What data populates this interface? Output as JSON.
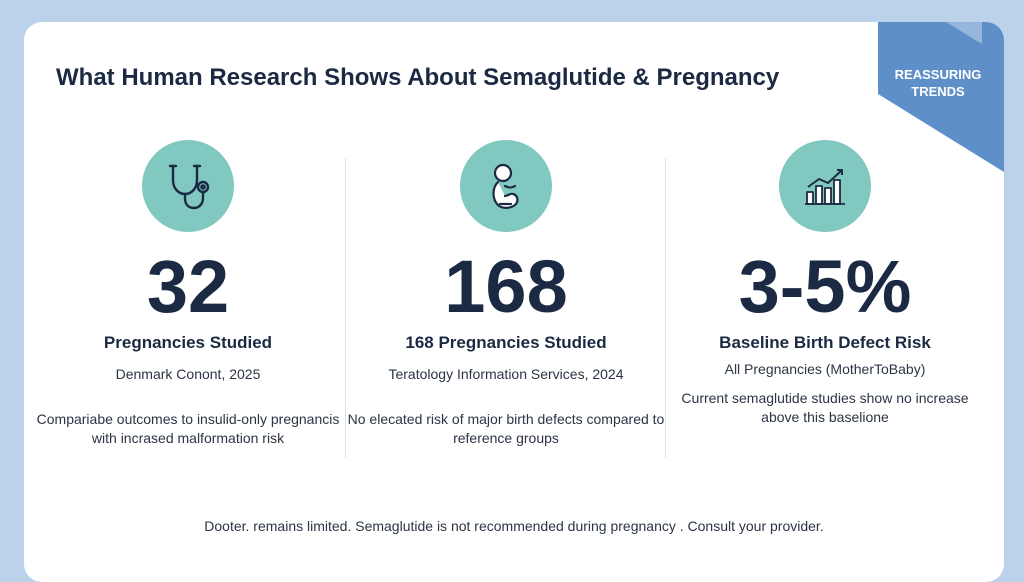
{
  "title": "What Human Research Shows About Semaglutide & Pregnancy",
  "badge": "REASSURING\nTRENDS",
  "colors": {
    "background": "#bcd2ea",
    "card": "#ffffff",
    "accent_teal": "#80c8c0",
    "ribbon_blue": "#5f8fc9",
    "text_dark": "#1b2a42"
  },
  "columns": [
    {
      "icon": "stethoscope-icon",
      "stat": "32",
      "label": "Pregnancies Studied",
      "source": "Denmark Conont, 2025",
      "description": "Compariabe outcomes to insulid-only pregnancis with incrased malformation risk"
    },
    {
      "icon": "baby-icon",
      "stat": "168",
      "label": "168 Pregnancies Studied",
      "source": "Teratology Information Services, 2024",
      "description": "No elecated risk of major birth defects compared to reference groups"
    },
    {
      "icon": "bar-chart-icon",
      "stat": "3-5%",
      "label": "Baseline Birth Defect Risk",
      "source": "All Pregnancies (MotherToBaby)",
      "description": "Current semaglutide studies show no increase above this baselione"
    }
  ],
  "footer": "Dooter. remains limited. Semaglutide is not recommended during pregnancy . Consult your provider."
}
